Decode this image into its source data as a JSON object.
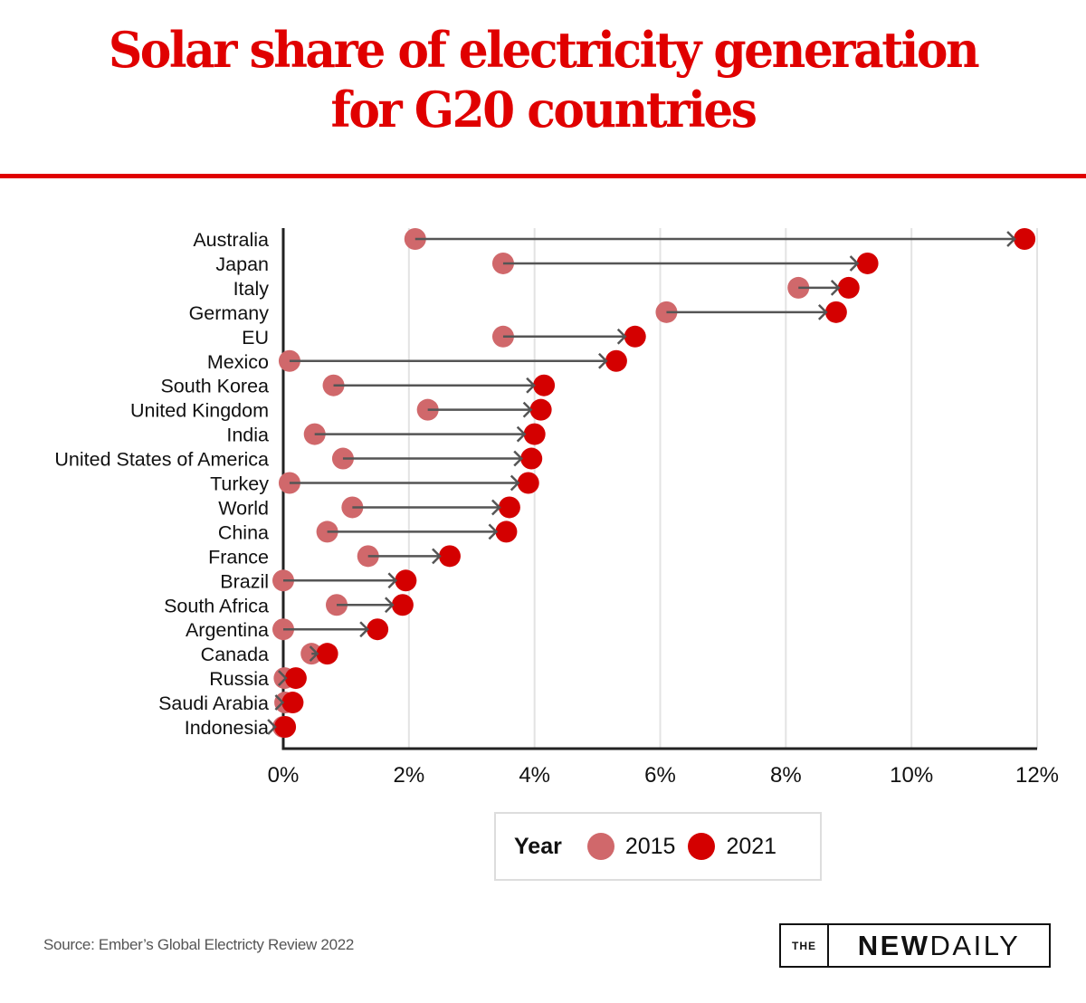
{
  "header": {
    "title_line1": "Solar share of electricity generation",
    "title_line2": "for G20 countries"
  },
  "colors": {
    "title_red": "#e00000",
    "year_2015": "#d0686b",
    "year_2021": "#d40000",
    "arrow": "#555555",
    "axis": "#222222",
    "grid": "#e3e3e3"
  },
  "legend": {
    "title": "Year",
    "items": [
      {
        "label": "2015",
        "color": "#d0686b"
      },
      {
        "label": "2021",
        "color": "#d40000"
      }
    ]
  },
  "footer": {
    "source": "Source: Ember’s Global Electricty Review 2022",
    "logo_the": "THE",
    "logo_new": "NEW",
    "logo_daily": "DAILY"
  },
  "chart_data": {
    "type": "scatter",
    "subtype": "dumbbell-arrow",
    "title": "Solar share of electricity generation for G20 countries",
    "xlabel": "",
    "ylabel": "",
    "xlim": [
      0,
      12
    ],
    "x_ticks": [
      0,
      2,
      4,
      6,
      8,
      10,
      12
    ],
    "x_tick_labels": [
      "0%",
      "2%",
      "4%",
      "6%",
      "8%",
      "10%",
      "12%"
    ],
    "grid": "vertical",
    "legend_position": "bottom-center",
    "categories": [
      "Australia",
      "Japan",
      "Italy",
      "Germany",
      "EU",
      "Mexico",
      "South Korea",
      "United Kingdom",
      "India",
      "United States of America",
      "Turkey",
      "World",
      "China",
      "France",
      "Brazil",
      "South Africa",
      "Argentina",
      "Canada",
      "Russia",
      "Saudi Arabia",
      "Indonesia"
    ],
    "series": [
      {
        "name": "2015",
        "values": [
          2.1,
          3.5,
          8.2,
          6.1,
          3.5,
          0.1,
          0.8,
          2.3,
          0.5,
          0.95,
          0.1,
          1.1,
          0.7,
          1.35,
          0.0,
          0.85,
          0.0,
          0.45,
          0.02,
          0.03,
          0.0
        ]
      },
      {
        "name": "2021",
        "values": [
          11.8,
          9.3,
          9.0,
          8.8,
          5.6,
          5.3,
          4.15,
          4.1,
          4.0,
          3.95,
          3.9,
          3.6,
          3.55,
          2.65,
          1.95,
          1.9,
          1.5,
          0.7,
          0.2,
          0.15,
          0.03
        ]
      }
    ]
  }
}
